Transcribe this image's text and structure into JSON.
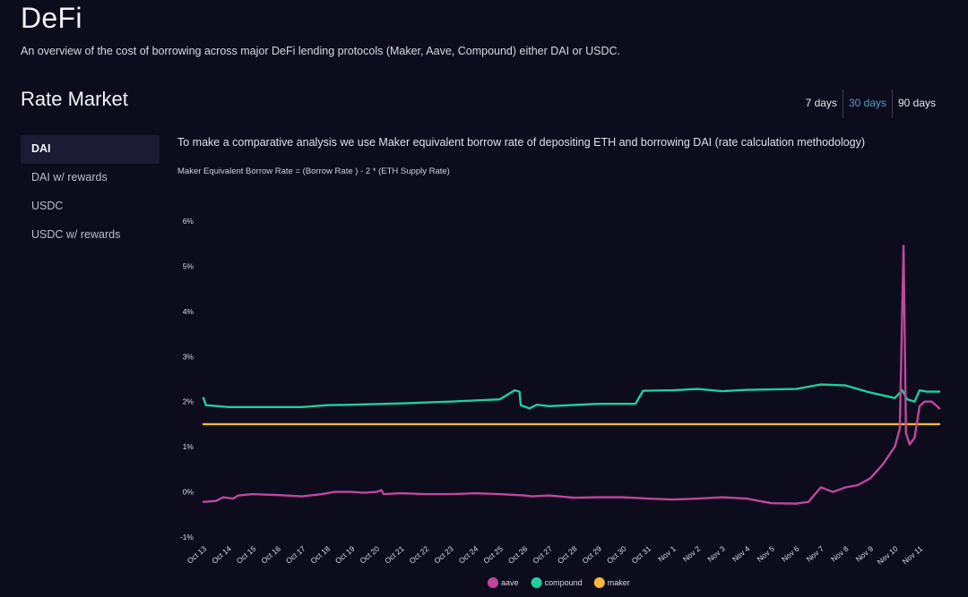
{
  "header": {
    "title": "DeFi",
    "subtitle": "An overview of the cost of borrowing across major DeFi lending protocols (Maker, Aave, Compound) either DAI or USDC."
  },
  "section": {
    "title": "Rate Market"
  },
  "range_tabs": [
    {
      "label": "7 days",
      "active": false
    },
    {
      "label": "30 days",
      "active": true
    },
    {
      "label": "90 days",
      "active": false
    }
  ],
  "sidebar": {
    "items": [
      {
        "label": "DAI",
        "active": true
      },
      {
        "label": "DAI w/ rewards",
        "active": false
      },
      {
        "label": "USDC",
        "active": false
      },
      {
        "label": "USDC w/ rewards",
        "active": false
      }
    ]
  },
  "main": {
    "description": "To make a comparative analysis we use Maker equivalent borrow rate of depositing ETH and borrowing DAI (rate calculation methodology)",
    "formula": "Maker Equivalent Borrow Rate = (Borrow Rate ) - 2 * (ETH Supply Rate)"
  },
  "chart_data": {
    "type": "line",
    "title": "",
    "xlabel": "",
    "ylabel": "",
    "y_ticks": [
      "-1%",
      "0%",
      "1%",
      "2%",
      "3%",
      "4%",
      "5%",
      "6%"
    ],
    "ylim": [
      -1,
      6
    ],
    "x_tick_labels": [
      "Oct 13",
      "Oct 14",
      "Oct 15",
      "Oct 16",
      "Oct 17",
      "Oct 18",
      "Oct 19",
      "Oct 20",
      "Oct 21",
      "Oct 22",
      "Oct 23",
      "Oct 24",
      "Oct 25",
      "Oct 26",
      "Oct 27",
      "Oct 28",
      "Oct 29",
      "Oct 30",
      "Oct 31",
      "Nov 1",
      "Nov 2",
      "Nov 3",
      "Nov 4",
      "Nov 5",
      "Nov 6",
      "Nov 7",
      "Nov 8",
      "Nov 9",
      "Nov 10",
      "Nov 11"
    ],
    "xlim": [
      0,
      29.8
    ],
    "grid": false,
    "legend_position": "bottom",
    "series": [
      {
        "name": "aave",
        "color": "#c0479e",
        "points": [
          [
            0,
            -0.22
          ],
          [
            0.5,
            -0.2
          ],
          [
            0.8,
            -0.12
          ],
          [
            1.2,
            -0.15
          ],
          [
            1.4,
            -0.08
          ],
          [
            2,
            -0.05
          ],
          [
            3,
            -0.07
          ],
          [
            4,
            -0.1
          ],
          [
            4.8,
            -0.05
          ],
          [
            5.3,
            0.0
          ],
          [
            6,
            0.0
          ],
          [
            6.5,
            -0.02
          ],
          [
            7,
            0.0
          ],
          [
            7.2,
            0.04
          ],
          [
            7.3,
            -0.05
          ],
          [
            8,
            -0.03
          ],
          [
            9,
            -0.05
          ],
          [
            10,
            -0.05
          ],
          [
            11,
            -0.03
          ],
          [
            12,
            -0.05
          ],
          [
            13,
            -0.08
          ],
          [
            13.3,
            -0.1
          ],
          [
            14,
            -0.08
          ],
          [
            15,
            -0.13
          ],
          [
            16,
            -0.12
          ],
          [
            17,
            -0.12
          ],
          [
            18,
            -0.15
          ],
          [
            19,
            -0.17
          ],
          [
            20,
            -0.15
          ],
          [
            21,
            -0.12
          ],
          [
            22,
            -0.15
          ],
          [
            22.5,
            -0.2
          ],
          [
            23,
            -0.25
          ],
          [
            24,
            -0.26
          ],
          [
            24.5,
            -0.22
          ],
          [
            25,
            0.1
          ],
          [
            25.5,
            0.0
          ],
          [
            26,
            0.1
          ],
          [
            26.5,
            0.15
          ],
          [
            27,
            0.3
          ],
          [
            27.5,
            0.6
          ],
          [
            28,
            1.0
          ],
          [
            28.2,
            1.4
          ],
          [
            28.35,
            5.45
          ],
          [
            28.45,
            1.3
          ],
          [
            28.6,
            1.05
          ],
          [
            28.8,
            1.2
          ],
          [
            29,
            1.9
          ],
          [
            29.2,
            2.0
          ],
          [
            29.5,
            2.0
          ],
          [
            29.8,
            1.85
          ]
        ]
      },
      {
        "name": "compound",
        "color": "#1fcf9b",
        "points": [
          [
            0,
            2.08
          ],
          [
            0.1,
            1.92
          ],
          [
            1,
            1.88
          ],
          [
            4,
            1.88
          ],
          [
            5,
            1.92
          ],
          [
            6,
            1.93
          ],
          [
            8,
            1.96
          ],
          [
            10,
            2.0
          ],
          [
            12,
            2.05
          ],
          [
            12.6,
            2.25
          ],
          [
            12.8,
            2.22
          ],
          [
            12.85,
            1.92
          ],
          [
            13.2,
            1.85
          ],
          [
            13.5,
            1.93
          ],
          [
            14,
            1.9
          ],
          [
            16,
            1.95
          ],
          [
            17.5,
            1.95
          ],
          [
            17.8,
            2.24
          ],
          [
            19,
            2.25
          ],
          [
            20,
            2.28
          ],
          [
            21,
            2.23
          ],
          [
            22,
            2.26
          ],
          [
            24,
            2.28
          ],
          [
            25,
            2.38
          ],
          [
            26,
            2.36
          ],
          [
            26.5,
            2.28
          ],
          [
            27,
            2.2
          ],
          [
            28,
            2.08
          ],
          [
            28.3,
            2.25
          ],
          [
            28.5,
            2.05
          ],
          [
            28.8,
            2.0
          ],
          [
            29,
            2.25
          ],
          [
            29.3,
            2.22
          ],
          [
            29.8,
            2.22
          ]
        ]
      },
      {
        "name": "maker",
        "color": "#f6b93b",
        "points": [
          [
            0,
            1.5
          ],
          [
            29.8,
            1.5
          ]
        ]
      }
    ]
  }
}
